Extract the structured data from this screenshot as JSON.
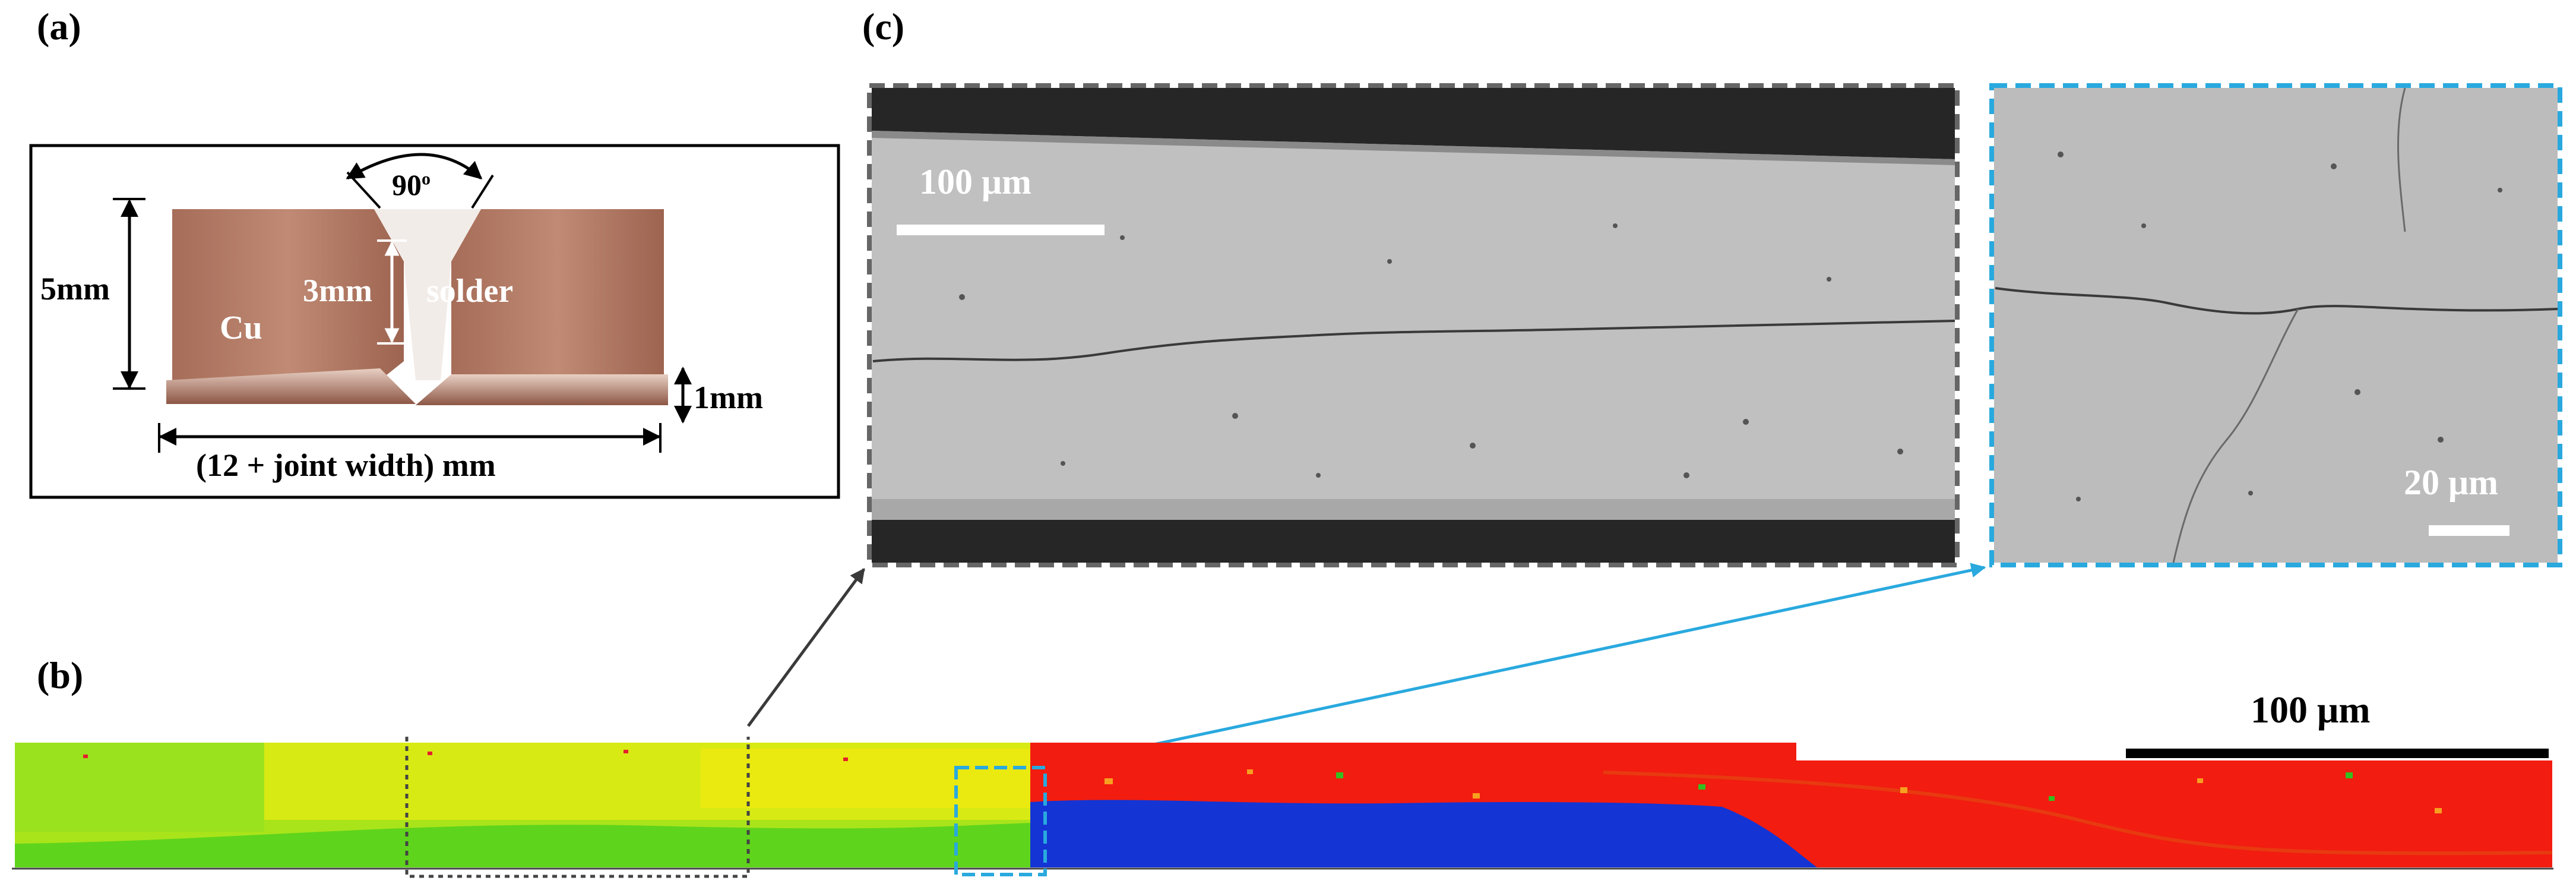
{
  "panels": {
    "a": {
      "label": "(a)"
    },
    "b": {
      "label": "(b)"
    },
    "c": {
      "label": "(c)"
    }
  },
  "specimen": {
    "angle": "90",
    "angle_sup": "o",
    "height_label": "5mm",
    "gap_label": "3mm",
    "solder_label": "solder",
    "cu_label": "Cu",
    "thickness_label": "1mm",
    "width_label": "(12 + joint width) mm"
  },
  "sem_left": {
    "scale_label": "100 μm"
  },
  "sem_right": {
    "scale_label": "20 μm"
  },
  "ebsd": {
    "scale_label": "100 μm"
  },
  "colors": {
    "gray_box": "#666666",
    "blue_box": "#29a9de",
    "ebsd_green": "#7de21a",
    "ebsd_yellow": "#e6ec12",
    "ebsd_red": "#f02010",
    "ebsd_blue": "#1432d0",
    "sem_gray": "#b9b9b9",
    "copper": "#b57864"
  }
}
